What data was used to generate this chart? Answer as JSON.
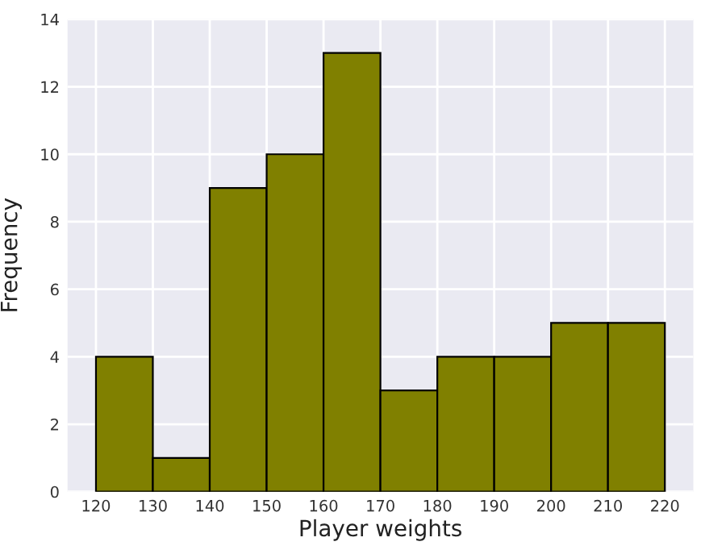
{
  "chart_data": {
    "type": "histogram",
    "xlabel": "Player weights",
    "ylabel": "Frequency",
    "bins": [
      120,
      130,
      140,
      150,
      160,
      170,
      180,
      190,
      200,
      210,
      220
    ],
    "values": [
      4,
      1,
      9,
      10,
      13,
      3,
      4,
      4,
      5,
      5
    ],
    "color": "#808000",
    "xlim": [
      115,
      225
    ],
    "xticks": [
      120,
      130,
      140,
      150,
      160,
      170,
      180,
      190,
      200,
      210,
      220
    ],
    "ylim": [
      0,
      14
    ],
    "yticks": [
      0,
      2,
      4,
      6,
      8,
      10,
      12,
      14
    ],
    "grid": true
  }
}
